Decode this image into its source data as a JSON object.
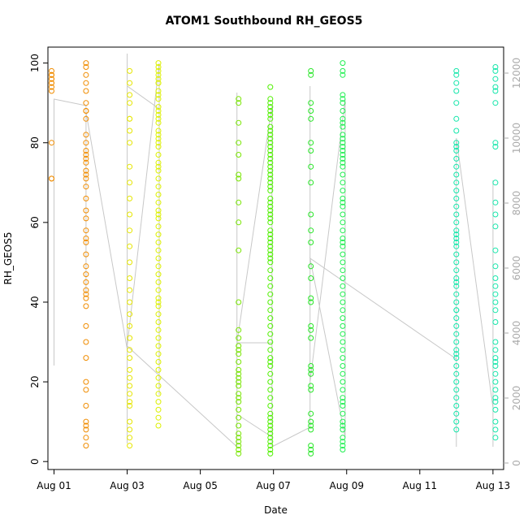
{
  "chart_data": {
    "type": "scatter",
    "title": "ATOM1 Southbound RH_GEOS5",
    "xlabel": "Date",
    "ylabel": "RH_GEOS5",
    "x_axis": {
      "kind": "date",
      "range": [
        "2016-07-31T20:00",
        "2016-08-13T07:00"
      ],
      "ticks": [
        {
          "value": "2016-08-01",
          "label": "Aug 01"
        },
        {
          "value": "2016-08-03",
          "label": "Aug 03"
        },
        {
          "value": "2016-08-05",
          "label": "Aug 05"
        },
        {
          "value": "2016-08-07",
          "label": "Aug 07"
        },
        {
          "value": "2016-08-09",
          "label": "Aug 09"
        },
        {
          "value": "2016-08-11",
          "label": "Aug 11"
        },
        {
          "value": "2016-08-13",
          "label": "Aug 13"
        }
      ]
    },
    "y_axis_left": {
      "range": [
        -2,
        104
      ],
      "ticks": [
        0,
        20,
        40,
        60,
        80,
        100
      ]
    },
    "y_axis_right": {
      "range": [
        -200,
        12800
      ],
      "ticks": [
        0,
        2000,
        4000,
        6000,
        8000,
        10000,
        12000
      ],
      "color": "#aaaaaa"
    },
    "legend": "none",
    "grid": false,
    "altitude_line_color": "#c8c8c8",
    "marker": "open-circle",
    "flights": [
      {
        "date": "2016-08-01T00:00",
        "color": "#f08c00",
        "rh": [
          98,
          97,
          96,
          95,
          94,
          93,
          97,
          96,
          80,
          71,
          71,
          95,
          97
        ]
      },
      {
        "date": "2016-08-01T21:00",
        "color": "#f08c00",
        "rh": [
          100,
          99,
          97,
          95,
          93,
          90,
          88,
          86,
          82,
          80,
          78,
          76,
          75,
          73,
          71,
          69,
          66,
          63,
          61,
          58,
          56,
          55,
          52,
          49,
          47,
          45,
          43,
          41,
          39,
          34,
          30,
          26,
          20,
          18,
          14,
          10,
          8,
          6,
          4,
          77,
          72,
          88,
          42,
          9
        ]
      },
      {
        "date": "2016-08-03T00:00",
        "color": "#e6e600",
        "rh": [
          98,
          95,
          92,
          90,
          86,
          80,
          74,
          70,
          66,
          62,
          58,
          54,
          50,
          46,
          43,
          40,
          37,
          34,
          31,
          28,
          26,
          23,
          21,
          19,
          17,
          15,
          14,
          10,
          8,
          6,
          4,
          83,
          86
        ]
      },
      {
        "date": "2016-08-03T21:00",
        "color": "#dcf000",
        "rh": [
          100,
          99,
          98,
          97,
          96,
          95,
          93,
          91,
          89,
          87,
          85,
          83,
          81,
          79,
          77,
          75,
          73,
          71,
          69,
          67,
          65,
          63,
          61,
          59,
          57,
          55,
          53,
          51,
          49,
          47,
          45,
          43,
          41,
          39,
          37,
          35,
          33,
          31,
          29,
          27,
          25,
          23,
          21,
          19,
          17,
          15,
          13,
          11,
          9,
          80,
          82,
          86,
          74,
          95,
          92,
          88,
          40,
          62
        ]
      },
      {
        "date": "2016-08-06T00:00",
        "color": "#78e600",
        "rh": [
          91,
          90,
          85,
          80,
          77,
          72,
          71,
          65,
          60,
          53,
          40,
          33,
          31,
          29,
          27,
          25,
          23,
          21,
          19,
          17,
          15,
          13,
          11,
          9,
          7,
          6,
          5,
          4,
          3,
          2,
          20,
          16,
          28,
          22
        ]
      },
      {
        "date": "2016-08-06T23:00",
        "color": "#50f000",
        "rh": [
          94,
          91,
          90,
          89,
          88,
          87,
          86,
          84,
          83,
          82,
          81,
          80,
          79,
          78,
          77,
          76,
          75,
          74,
          73,
          72,
          71,
          70,
          69,
          68,
          66,
          65,
          64,
          62,
          61,
          60,
          58,
          56,
          55,
          54,
          53,
          52,
          51,
          50,
          48,
          46,
          44,
          42,
          40,
          38,
          36,
          34,
          32,
          30,
          28,
          26,
          24,
          22,
          20,
          18,
          16,
          14,
          12,
          10,
          9,
          8,
          7,
          6,
          5,
          4,
          3,
          2,
          57,
          63,
          25,
          11
        ]
      },
      {
        "date": "2016-08-08T00:00",
        "color": "#28e628",
        "rh": [
          98,
          97,
          90,
          88,
          86,
          80,
          78,
          74,
          70,
          62,
          58,
          55,
          49,
          46,
          41,
          40,
          34,
          33,
          31,
          24,
          23,
          22,
          19,
          18,
          12,
          10,
          9,
          8,
          4,
          3,
          2
        ]
      },
      {
        "date": "2016-08-08T23:00",
        "color": "#1ef050",
        "rh": [
          100,
          98,
          97,
          92,
          91,
          90,
          88,
          86,
          84,
          82,
          81,
          80,
          79,
          78,
          77,
          76,
          74,
          72,
          70,
          68,
          66,
          64,
          62,
          60,
          58,
          56,
          54,
          52,
          50,
          48,
          46,
          44,
          42,
          40,
          38,
          36,
          34,
          32,
          30,
          28,
          26,
          24,
          22,
          20,
          18,
          16,
          14,
          12,
          10,
          8,
          6,
          5,
          4,
          3,
          85,
          75,
          65,
          55,
          15,
          9
        ]
      },
      {
        "date": "2016-08-12T00:00",
        "color": "#14e6aa",
        "rh": [
          98,
          97,
          95,
          93,
          90,
          86,
          83,
          80,
          79,
          78,
          76,
          74,
          72,
          70,
          68,
          66,
          64,
          62,
          60,
          58,
          56,
          54,
          52,
          50,
          48,
          46,
          44,
          42,
          40,
          38,
          36,
          34,
          32,
          30,
          28,
          26,
          24,
          22,
          20,
          18,
          16,
          14,
          12,
          10,
          8,
          57,
          55,
          45,
          38,
          27
        ]
      },
      {
        "date": "2016-08-13T00:00",
        "color": "#14e6aa",
        "rh": [
          99,
          98,
          96,
          94,
          93,
          90,
          80,
          79,
          70,
          65,
          62,
          59,
          53,
          49,
          46,
          44,
          42,
          40,
          38,
          35,
          30,
          28,
          26,
          25,
          24,
          22,
          20,
          18,
          16,
          15,
          13,
          10,
          8,
          6
        ]
      }
    ],
    "altitude_trace": [
      [
        "2016-08-01T00:00",
        9100
      ],
      [
        "2016-08-01T00:00",
        3000
      ],
      [
        "2016-08-01T00:00",
        11200
      ],
      [
        "2016-08-01T21:00",
        11000
      ],
      [
        "2016-08-01T21:00",
        5200
      ],
      [
        "2016-08-01T21:00",
        10800
      ],
      [
        "2016-08-03T00:00",
        3500
      ],
      [
        "2016-08-03T00:00",
        12600
      ],
      [
        "2016-08-03T00:00",
        600
      ],
      [
        "2016-08-03T00:00",
        11600
      ],
      [
        "2016-08-03T21:00",
        10900
      ],
      [
        "2016-08-03T21:00",
        2100
      ],
      [
        "2016-08-03T21:00",
        12300
      ],
      [
        "2016-08-03T00:00",
        3600
      ],
      [
        "2016-08-06T00:00",
        500
      ],
      [
        "2016-08-06T00:00",
        11400
      ],
      [
        "2016-08-06T00:00",
        1500
      ],
      [
        "2016-08-06T23:00",
        800
      ],
      [
        "2016-08-06T23:00",
        11000
      ],
      [
        "2016-08-06T00:00",
        3700
      ],
      [
        "2016-08-06T23:00",
        3700
      ],
      [
        "2016-08-06T23:00",
        500
      ],
      [
        "2016-08-08T00:00",
        1100
      ],
      [
        "2016-08-08T00:00",
        11600
      ],
      [
        "2016-08-08T00:00",
        2500
      ],
      [
        "2016-08-08T23:00",
        11200
      ],
      [
        "2016-08-08T23:00",
        800
      ],
      [
        "2016-08-08T00:00",
        6300
      ],
      [
        "2016-08-12T00:00",
        3200
      ],
      [
        "2016-08-12T00:00",
        500
      ],
      [
        "2016-08-12T00:00",
        10000
      ],
      [
        "2016-08-13T00:00",
        1700
      ],
      [
        "2016-08-13T00:00",
        8700
      ],
      [
        "2016-08-13T00:00",
        500
      ]
    ]
  }
}
